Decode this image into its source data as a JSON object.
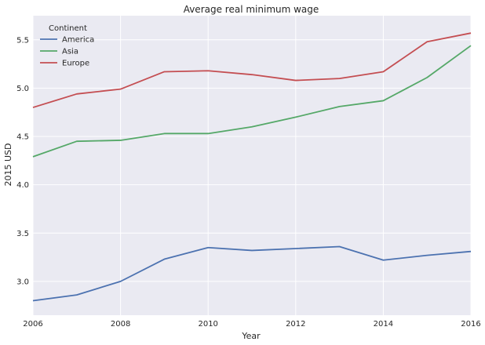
{
  "chart_data": {
    "type": "line",
    "title": "Average real minimum wage",
    "xlabel": "Year",
    "ylabel": "2015 USD",
    "xlim": [
      2006,
      2016
    ],
    "ylim": [
      2.65,
      5.75
    ],
    "x_ticks": [
      2006,
      2008,
      2010,
      2012,
      2014,
      2016
    ],
    "y_ticks": [
      3.0,
      3.5,
      4.0,
      4.5,
      5.0,
      5.5
    ],
    "y_tick_labels": [
      "3.0",
      "3.5",
      "4.0",
      "4.5",
      "5.0",
      "5.5"
    ],
    "x_tick_labels": [
      "2006",
      "2008",
      "2010",
      "2012",
      "2014",
      "2016"
    ],
    "grid": true,
    "legend": {
      "title": "Continent",
      "placement": "top-left"
    },
    "x": [
      2006,
      2007,
      2008,
      2009,
      2010,
      2011,
      2012,
      2013,
      2014,
      2015,
      2016
    ],
    "series": [
      {
        "name": "America",
        "color": "#4c72b0",
        "values": [
          2.8,
          2.86,
          3.0,
          3.23,
          3.35,
          3.32,
          3.34,
          3.36,
          3.22,
          3.27,
          3.31
        ]
      },
      {
        "name": "Asia",
        "color": "#55a868",
        "values": [
          4.29,
          4.45,
          4.46,
          4.53,
          4.53,
          4.6,
          4.7,
          4.81,
          4.87,
          5.11,
          5.44
        ]
      },
      {
        "name": "Europe",
        "color": "#c44e52",
        "values": [
          4.8,
          4.94,
          4.99,
          5.17,
          5.18,
          5.14,
          5.08,
          5.1,
          5.17,
          5.48,
          5.57
        ]
      }
    ],
    "background_color": "#eaeaf2",
    "grid_color": "#ffffff"
  }
}
